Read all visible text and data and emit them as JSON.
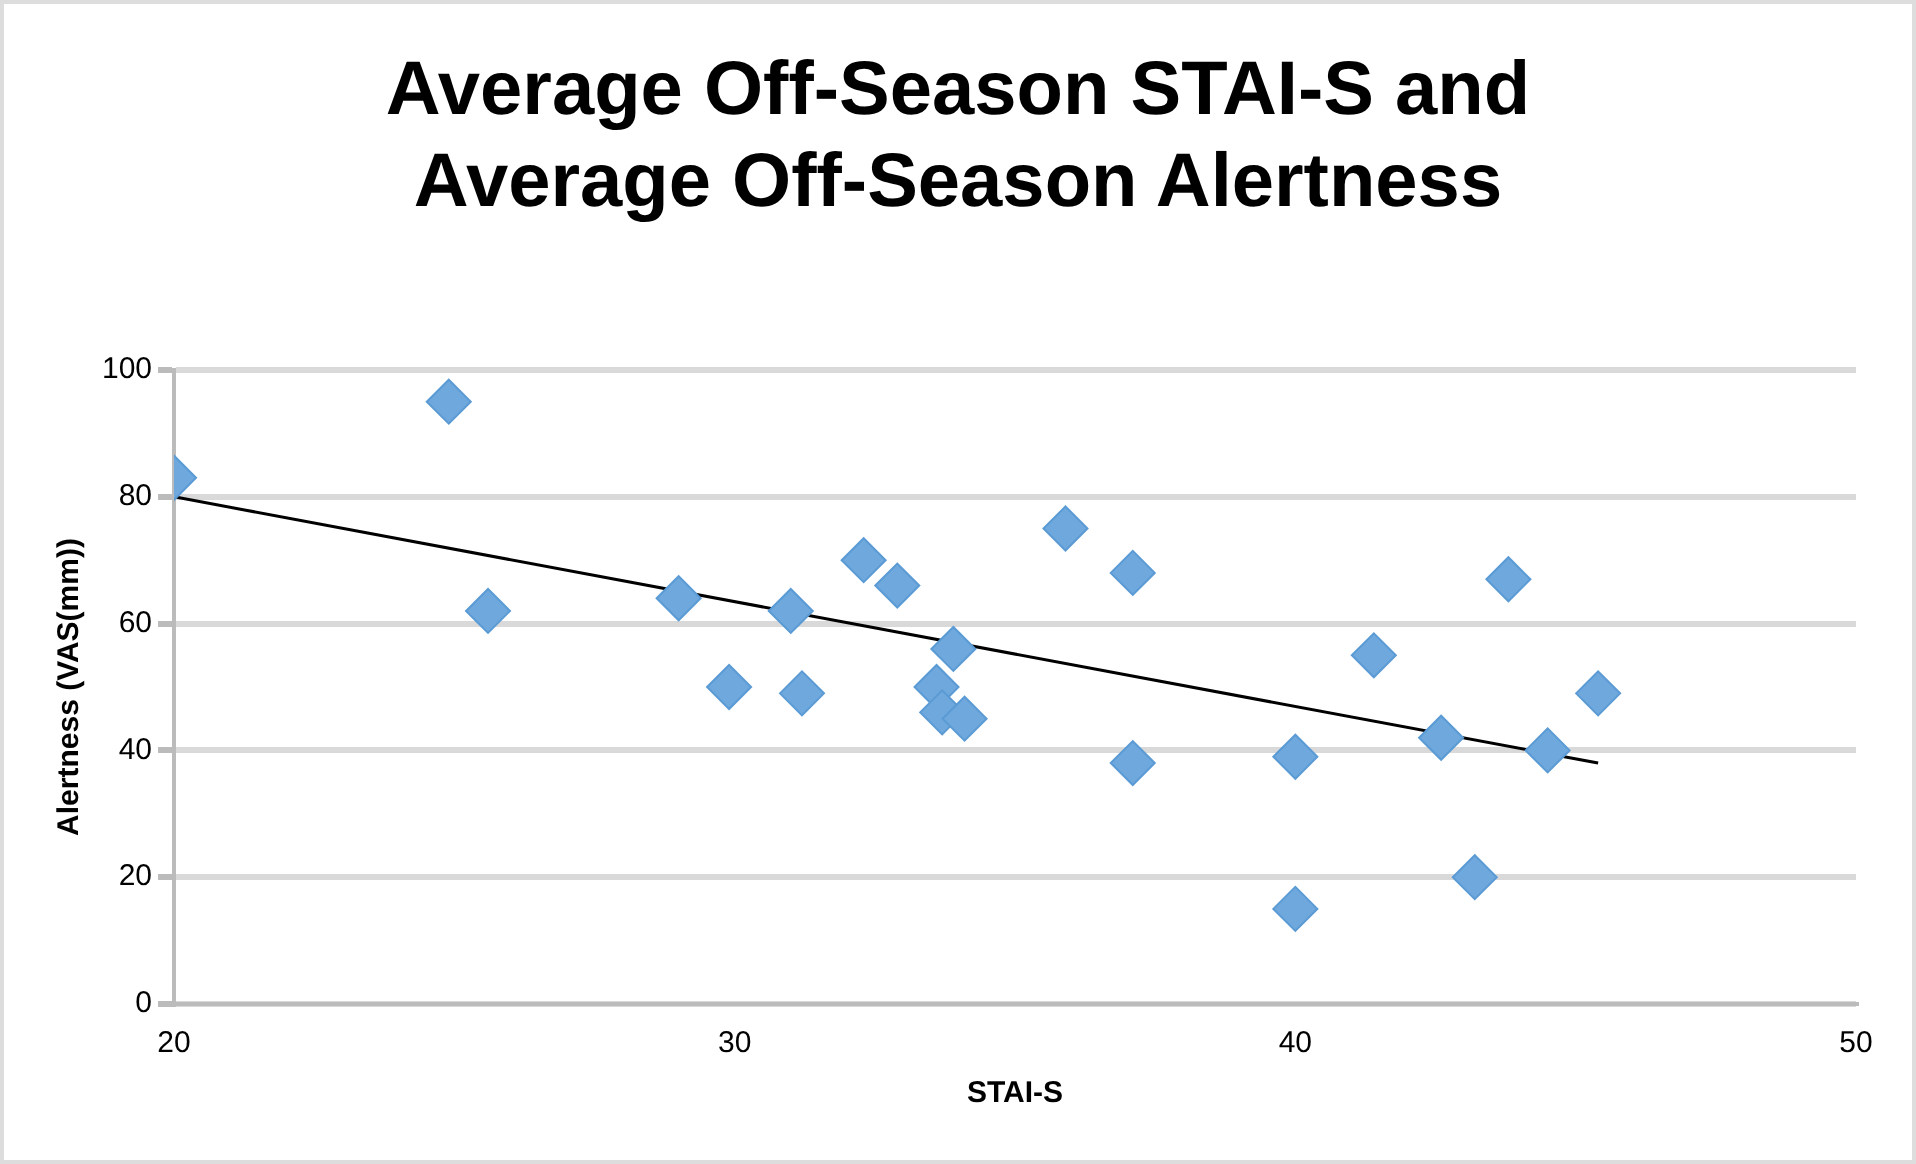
{
  "chart_data": {
    "type": "scatter",
    "title": "Average Off-Season STAI-S and Average Off-Season Alertness",
    "xlabel": "STAI-S",
    "ylabel": "Alertness (VAS(mm))",
    "xlim": [
      20,
      50
    ],
    "xticks": [
      20,
      30,
      40,
      50
    ],
    "ylim": [
      0,
      100
    ],
    "yticks": [
      0,
      20,
      40,
      60,
      80,
      100
    ],
    "grid": "y",
    "legend": false,
    "marker": "diamond",
    "series": [
      {
        "color": "#6fa8dc",
        "x": [
          20,
          24.9,
          25.6,
          29,
          29.9,
          31,
          31.2,
          32.3,
          32.9,
          33.6,
          33.7,
          33.9,
          34.1,
          35.9,
          37.1,
          37.1,
          40,
          40,
          41.4,
          42.6,
          43.2,
          43.8,
          44.5,
          45.4
        ],
        "values": [
          83,
          95,
          62,
          64,
          50,
          62,
          49,
          70,
          66,
          50,
          46,
          56,
          45,
          75,
          68,
          38,
          39,
          15,
          55,
          42,
          20,
          67,
          40,
          49
        ]
      },
      {
        "type": "line",
        "color": "#000000",
        "marker": "none",
        "x": [
          20,
          45.4
        ],
        "values": [
          80,
          38
        ]
      }
    ]
  }
}
